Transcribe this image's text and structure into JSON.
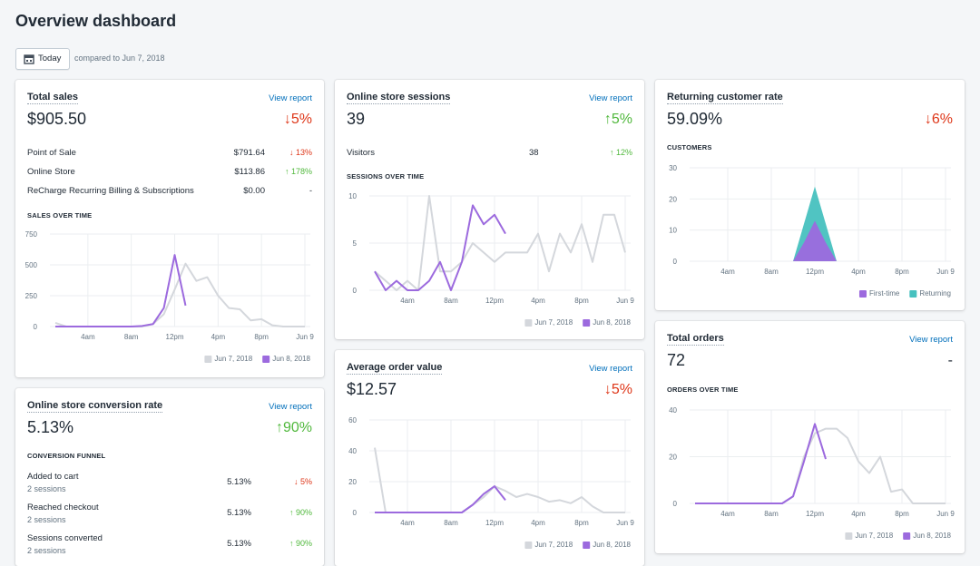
{
  "header": {
    "title": "Overview dashboard",
    "button": "Today",
    "compare": "compared to Jun 7, 2018"
  },
  "cards": [
    {
      "title": "Total sales",
      "link": "View report",
      "value": "$905.50",
      "change": "↓5%",
      "change_color": "#de3618",
      "rows": [
        {
          "label": "Point of Sale",
          "value": "$791.64",
          "change": "↓ 13%",
          "change_color": "#de3618"
        },
        {
          "label": "Online Store",
          "value": "$113.86",
          "change": "↑ 178%",
          "change_color": "#50b83c"
        },
        {
          "label": "ReCharge Recurring Billing & Subscriptions",
          "value": "$0.00",
          "change": "-",
          "change_color": "#212b36"
        }
      ],
      "heading": "SALES OVER TIME",
      "chart": {
        "type": "line",
        "grid": true,
        "x": [
          1,
          2,
          3,
          4,
          5,
          6,
          7,
          8,
          9,
          10,
          11,
          12,
          13,
          14,
          15,
          16,
          17,
          18,
          19,
          20,
          21,
          22,
          23,
          24
        ],
        "xlim": [
          0.5,
          24.5
        ],
        "xticks": [
          {
            "value": 4,
            "label": "4am"
          },
          {
            "value": 8,
            "label": "8am"
          },
          {
            "value": 12,
            "label": "12pm"
          },
          {
            "value": 16,
            "label": "4pm"
          },
          {
            "value": 20,
            "label": "8pm"
          },
          {
            "value": 24,
            "label": "Jun 9"
          }
        ],
        "ylim": [
          0,
          750
        ],
        "yticks": [
          0,
          250,
          500,
          750
        ],
        "series": [
          {
            "name": "Jun 7, 2018",
            "color": "#d4d7dc",
            "values": [
              30,
              0,
              0,
              0,
              0,
              0,
              0,
              0,
              0,
              20,
              100,
              300,
              510,
              370,
              400,
              250,
              150,
              140,
              50,
              60,
              10,
              0,
              0,
              0
            ]
          },
          {
            "name": "Jun 8, 2018",
            "color": "#9c6ade",
            "values": [
              0,
              0,
              0,
              0,
              0,
              0,
              0,
              0,
              5,
              20,
              150,
              580,
              170,
              null,
              null,
              null,
              null,
              null,
              null,
              null,
              null,
              null,
              null,
              null
            ]
          }
        ]
      }
    },
    {
      "title": "Online store conversion rate",
      "link": "View report",
      "value": "5.13%",
      "change": "↑90%",
      "change_color": "#50b83c",
      "heading": "CONVERSION FUNNEL",
      "funnel": [
        {
          "label": "Added to cart",
          "sub": "2 sessions",
          "value": "5.13%",
          "change": "↓ 5%",
          "change_color": "#de3618"
        },
        {
          "label": "Reached checkout",
          "sub": "2 sessions",
          "value": "5.13%",
          "change": "↑ 90%",
          "change_color": "#50b83c"
        },
        {
          "label": "Sessions converted",
          "sub": "2 sessions",
          "value": "5.13%",
          "change": "↑ 90%",
          "change_color": "#50b83c"
        }
      ]
    },
    {
      "title": "Online store sessions",
      "link": "View report",
      "value": "39",
      "change": "↑5%",
      "change_color": "#50b83c",
      "rows": [
        {
          "label": "Visitors",
          "value": "38",
          "change": "↑ 12%",
          "change_color": "#50b83c"
        }
      ],
      "heading": "SESSIONS OVER TIME",
      "chart": {
        "type": "line",
        "grid": true,
        "x": [
          1,
          2,
          3,
          4,
          5,
          6,
          7,
          8,
          9,
          10,
          11,
          12,
          13,
          14,
          15,
          16,
          17,
          18,
          19,
          20,
          21,
          22,
          23,
          24
        ],
        "xlim": [
          0.5,
          24.5
        ],
        "xticks": [
          {
            "value": 4,
            "label": "4am"
          },
          {
            "value": 8,
            "label": "8am"
          },
          {
            "value": 12,
            "label": "12pm"
          },
          {
            "value": 16,
            "label": "4pm"
          },
          {
            "value": 20,
            "label": "8pm"
          },
          {
            "value": 24,
            "label": "Jun 9"
          }
        ],
        "ylim": [
          0,
          10
        ],
        "yticks": [
          0,
          5,
          10
        ],
        "series": [
          {
            "name": "Jun 7, 2018",
            "color": "#d4d7dc",
            "values": [
              2,
              1,
              0,
              1,
              0,
              10,
              2,
              2,
              3,
              5,
              4,
              3,
              4,
              4,
              4,
              6,
              2,
              6,
              4,
              7,
              3,
              8,
              8,
              4
            ]
          },
          {
            "name": "Jun 8, 2018",
            "color": "#9c6ade",
            "values": [
              2,
              0,
              1,
              0,
              0,
              1,
              3,
              0,
              3,
              9,
              7,
              8,
              6,
              null,
              null,
              null,
              null,
              null,
              null,
              null,
              null,
              null,
              null,
              null
            ]
          }
        ]
      }
    },
    {
      "title": "Average order value",
      "link": "View report",
      "value": "$12.57",
      "change": "↓5%",
      "change_color": "#de3618",
      "chart": {
        "type": "line",
        "grid": true,
        "x": [
          1,
          2,
          3,
          4,
          5,
          6,
          7,
          8,
          9,
          10,
          11,
          12,
          13,
          14,
          15,
          16,
          17,
          18,
          19,
          20,
          21,
          22,
          23,
          24
        ],
        "xlim": [
          0.5,
          24.5
        ],
        "xticks": [
          {
            "value": 4,
            "label": "4am"
          },
          {
            "value": 8,
            "label": "8am"
          },
          {
            "value": 12,
            "label": "12pm"
          },
          {
            "value": 16,
            "label": "4pm"
          },
          {
            "value": 20,
            "label": "8pm"
          },
          {
            "value": 24,
            "label": "Jun 9"
          }
        ],
        "ylim": [
          0,
          60
        ],
        "yticks": [
          0,
          20,
          40,
          60
        ],
        "series": [
          {
            "name": "Jun 7, 2018",
            "color": "#d4d7dc",
            "values": [
              42,
              0,
              0,
              0,
              0,
              0,
              0,
              0,
              0,
              5,
              10,
              17,
              14,
              10,
              12,
              10,
              7,
              8,
              6,
              10,
              4,
              0,
              0,
              0
            ]
          },
          {
            "name": "Jun 8, 2018",
            "color": "#9c6ade",
            "values": [
              0,
              0,
              0,
              0,
              0,
              0,
              0,
              0,
              0,
              5,
              12,
              17,
              8,
              null,
              null,
              null,
              null,
              null,
              null,
              null,
              null,
              null,
              null,
              null
            ]
          }
        ]
      }
    },
    {
      "title": "Returning customer rate",
      "value": "59.09%",
      "change": "↓6%",
      "change_color": "#de3618",
      "heading": "CUSTOMERS",
      "chart": {
        "type": "area",
        "grid": true,
        "x": [
          1,
          2,
          3,
          4,
          5,
          6,
          7,
          8,
          9,
          10,
          11,
          12,
          13,
          14,
          15,
          16,
          17,
          18,
          19,
          20,
          21,
          22,
          23,
          24
        ],
        "xlim": [
          0.5,
          24.5
        ],
        "xticks": [
          {
            "value": 4,
            "label": "4am"
          },
          {
            "value": 8,
            "label": "8am"
          },
          {
            "value": 12,
            "label": "12pm"
          },
          {
            "value": 16,
            "label": "4pm"
          },
          {
            "value": 20,
            "label": "8pm"
          },
          {
            "value": 24,
            "label": "Jun 9"
          }
        ],
        "ylim": [
          0,
          30
        ],
        "yticks": [
          0,
          10,
          20,
          30
        ],
        "series": [
          {
            "name": "First-time",
            "color": "#9c6ade",
            "values": [
              0,
              0,
              0,
              0,
              0,
              0,
              0,
              0,
              0,
              0,
              6,
              13,
              6,
              0,
              0,
              0,
              0,
              0,
              0,
              0,
              0,
              0,
              0,
              0
            ]
          },
          {
            "name": "Returning",
            "color": "#47c1bf",
            "values": [
              0,
              0,
              0,
              0,
              0,
              0,
              0,
              0,
              0,
              0,
              12,
              24,
              12,
              0,
              0,
              0,
              0,
              0,
              0,
              0,
              0,
              0,
              0,
              0
            ]
          }
        ]
      }
    },
    {
      "title": "Total orders",
      "link": "View report",
      "value": "72",
      "change": "-",
      "change_color": "#212b36",
      "heading": "ORDERS OVER TIME",
      "chart": {
        "type": "line",
        "grid": true,
        "x": [
          1,
          2,
          3,
          4,
          5,
          6,
          7,
          8,
          9,
          10,
          11,
          12,
          13,
          14,
          15,
          16,
          17,
          18,
          19,
          20,
          21,
          22,
          23,
          24
        ],
        "xlim": [
          0.5,
          24.5
        ],
        "xticks": [
          {
            "value": 4,
            "label": "4am"
          },
          {
            "value": 8,
            "label": "8am"
          },
          {
            "value": 12,
            "label": "12pm"
          },
          {
            "value": 16,
            "label": "4pm"
          },
          {
            "value": 20,
            "label": "8pm"
          },
          {
            "value": 24,
            "label": "Jun 9"
          }
        ],
        "ylim": [
          0,
          40
        ],
        "yticks": [
          0,
          20,
          40
        ],
        "series": [
          {
            "name": "Jun 7, 2018",
            "color": "#d4d7dc",
            "values": [
              0,
              0,
              0,
              0,
              0,
              0,
              0,
              0,
              0,
              3,
              20,
              30,
              32,
              32,
              28,
              18,
              13,
              20,
              5,
              6,
              0,
              0,
              0,
              0
            ]
          },
          {
            "name": "Jun 8, 2018",
            "color": "#9c6ade",
            "values": [
              0,
              0,
              0,
              0,
              0,
              0,
              0,
              0,
              0,
              3,
              18,
              34,
              19,
              null,
              null,
              null,
              null,
              null,
              null,
              null,
              null,
              null,
              null,
              null
            ]
          }
        ]
      }
    }
  ]
}
